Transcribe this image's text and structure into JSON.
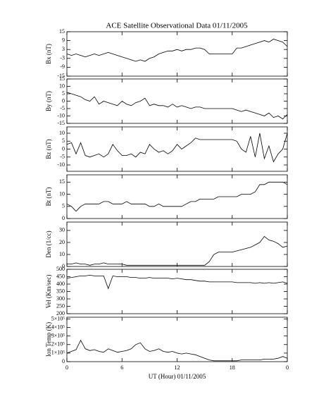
{
  "chart_data": [
    {
      "type": "line",
      "title": "ACE Satellite Observational Data   01/11/2005",
      "ylabel": "Bx (nT)",
      "x": [
        0,
        0.5,
        1,
        1.5,
        2,
        2.5,
        3,
        3.5,
        4,
        4.5,
        5,
        5.5,
        6,
        6.5,
        7,
        7.5,
        8,
        8.5,
        9,
        9.5,
        10,
        10.5,
        11,
        11.5,
        12,
        12.5,
        13,
        13.5,
        14,
        14.5,
        15,
        15.5,
        16,
        16.5,
        17,
        17.5,
        18,
        18.5,
        19,
        19.5,
        20,
        20.5,
        21,
        21.5,
        22,
        22.5,
        23,
        23.5,
        24
      ],
      "xlim": [
        0,
        24
      ],
      "xticks": [
        0,
        6,
        12,
        18,
        24
      ],
      "ylim": [
        -15,
        15
      ],
      "yticks": [
        -15,
        -9,
        -3,
        3,
        9,
        15
      ],
      "color": "#000000",
      "values": [
        0,
        -1,
        0,
        -1,
        -2,
        -1,
        0,
        -1,
        0,
        1,
        0,
        -1,
        -2,
        -3,
        -4,
        -5,
        -4,
        -5,
        -3,
        -2,
        0,
        1,
        2,
        2,
        3,
        2,
        3,
        3,
        4,
        4,
        3,
        0,
        0,
        0,
        0,
        0,
        0,
        4,
        4,
        5,
        6,
        7,
        8,
        9,
        8,
        10,
        9,
        8,
        5
      ]
    },
    {
      "type": "line",
      "ylabel": "By (nT)",
      "x": [
        0,
        0.5,
        1,
        1.5,
        2,
        2.5,
        3,
        3.5,
        4,
        4.5,
        5,
        5.5,
        6,
        6.5,
        7,
        7.5,
        8,
        8.5,
        9,
        9.5,
        10,
        10.5,
        11,
        11.5,
        12,
        12.5,
        13,
        13.5,
        14,
        14.5,
        15,
        15.5,
        16,
        16.5,
        17,
        17.5,
        18,
        18.5,
        19,
        19.5,
        20,
        20.5,
        21,
        21.5,
        22,
        22.5,
        23,
        23.5,
        24
      ],
      "xlim": [
        0,
        24
      ],
      "xticks": [
        0,
        6,
        12,
        18,
        24
      ],
      "ylim": [
        -15,
        15
      ],
      "yticks": [
        -15,
        -10,
        -5,
        0,
        5,
        10,
        15
      ],
      "color": "#000000",
      "values": [
        6,
        5,
        4,
        3,
        1,
        0,
        3,
        -2,
        0,
        -1,
        -2,
        -3,
        0,
        -2,
        -3,
        -1,
        0,
        2,
        -3,
        -2,
        -3,
        -3,
        -4,
        -2,
        -4,
        -3,
        -4,
        -5,
        -4,
        -4,
        -5,
        -5,
        -5,
        -5,
        -5,
        -5,
        -5,
        -6,
        -7,
        -6,
        -7,
        -8,
        -9,
        -10,
        -8,
        -11,
        -10,
        -12,
        -9
      ]
    },
    {
      "type": "line",
      "ylabel": "Bz (nT)",
      "x": [
        0,
        0.5,
        1,
        1.5,
        2,
        2.5,
        3,
        3.5,
        4,
        4.5,
        5,
        5.5,
        6,
        6.5,
        7,
        7.5,
        8,
        8.5,
        9,
        9.5,
        10,
        10.5,
        11,
        11.5,
        12,
        12.5,
        13,
        13.5,
        14,
        14.5,
        15,
        15.5,
        16,
        16.5,
        17,
        17.5,
        18,
        18.5,
        19,
        19.5,
        20,
        20.5,
        21,
        21.5,
        22,
        22.5,
        23,
        23.5,
        24
      ],
      "xlim": [
        0,
        24
      ],
      "xticks": [
        0,
        6,
        12,
        18,
        24
      ],
      "ylim": [
        -14,
        14
      ],
      "yticks": [
        -10,
        -5,
        0,
        5,
        10
      ],
      "color": "#000000",
      "values": [
        3,
        4,
        -3,
        4,
        -4,
        -5,
        -4,
        -3,
        -5,
        -3,
        3,
        -1,
        -4,
        -4,
        -3,
        -5,
        -2,
        -3,
        3,
        0,
        -2,
        -1,
        -3,
        -1,
        3,
        0,
        2,
        4,
        7,
        6,
        6,
        6,
        6,
        6,
        6,
        6,
        6,
        5,
        0,
        -2,
        8,
        -5,
        10,
        -6,
        2,
        -8,
        -3,
        0,
        10
      ]
    },
    {
      "type": "line",
      "ylabel": "Bt (nT)",
      "x": [
        0,
        0.5,
        1,
        1.5,
        2,
        2.5,
        3,
        3.5,
        4,
        4.5,
        5,
        5.5,
        6,
        6.5,
        7,
        7.5,
        8,
        8.5,
        9,
        9.5,
        10,
        10.5,
        11,
        11.5,
        12,
        12.5,
        13,
        13.5,
        14,
        14.5,
        15,
        15.5,
        16,
        16.5,
        17,
        17.5,
        18,
        18.5,
        19,
        19.5,
        20,
        20.5,
        21,
        21.5,
        22,
        22.5,
        23,
        23.5,
        24
      ],
      "xlim": [
        0,
        24
      ],
      "xticks": [
        0,
        6,
        12,
        18,
        24
      ],
      "ylim": [
        0,
        18
      ],
      "yticks": [
        0,
        5,
        10,
        15
      ],
      "color": "#000000",
      "values": [
        6,
        5,
        3,
        5,
        6,
        6,
        6,
        6,
        7,
        7,
        6,
        6,
        6,
        7,
        6,
        6,
        6,
        6,
        5,
        5,
        6,
        5,
        5,
        5,
        5,
        5,
        6,
        7,
        7,
        8,
        8,
        8,
        8,
        9,
        9,
        9,
        9,
        9,
        10,
        10,
        10,
        11,
        14,
        14,
        15,
        15,
        15,
        15,
        14
      ]
    },
    {
      "type": "line",
      "ylabel": "Den (1/cc)",
      "x": [
        0,
        0.5,
        1,
        1.5,
        2,
        2.5,
        3,
        3.5,
        4,
        4.5,
        5,
        5.5,
        6,
        6.5,
        7,
        7.5,
        8,
        8.5,
        9,
        9.5,
        10,
        10.5,
        11,
        11.5,
        12,
        12.5,
        13,
        13.5,
        14,
        14.5,
        15,
        15.5,
        16,
        16.5,
        17,
        17.5,
        18,
        18.5,
        19,
        19.5,
        20,
        20.5,
        21,
        21.5,
        22,
        22.5,
        23,
        23.5,
        24
      ],
      "xlim": [
        0,
        24
      ],
      "xticks": [
        0,
        6,
        12,
        18,
        24
      ],
      "ylim": [
        0,
        37
      ],
      "yticks": [
        0,
        10,
        20,
        30
      ],
      "color": "#000000",
      "values": [
        2,
        2,
        3,
        2,
        2,
        1,
        2,
        2,
        3,
        2,
        2,
        2,
        2,
        1,
        1,
        1,
        1,
        1,
        1,
        1,
        1,
        1,
        1,
        1,
        1,
        1,
        1,
        1,
        1,
        1,
        1,
        4,
        10,
        12,
        12,
        12,
        12,
        13,
        14,
        15,
        16,
        18,
        20,
        25,
        22,
        21,
        19,
        16,
        17
      ]
    },
    {
      "type": "line",
      "ylabel": "Vel (Km/sec)",
      "x": [
        0,
        0.5,
        1,
        1.5,
        2,
        2.5,
        3,
        3.5,
        4,
        4.5,
        5,
        5.5,
        6,
        6.5,
        7,
        7.5,
        8,
        8.5,
        9,
        9.5,
        10,
        10.5,
        11,
        11.5,
        12,
        12.5,
        13,
        13.5,
        14,
        14.5,
        15,
        15.5,
        16,
        16.5,
        17,
        17.5,
        18,
        18.5,
        19,
        19.5,
        20,
        20.5,
        21,
        21.5,
        22,
        22.5,
        23,
        23.5,
        24
      ],
      "xlim": [
        0,
        24
      ],
      "xticks": [
        0,
        6,
        12,
        18,
        24
      ],
      "ylim": [
        200,
        500
      ],
      "yticks": [
        200,
        250,
        300,
        350,
        400,
        450,
        500
      ],
      "color": "#000000",
      "values": [
        440,
        445,
        450,
        455,
        455,
        460,
        455,
        455,
        455,
        370,
        455,
        450,
        450,
        450,
        445,
        445,
        440,
        440,
        445,
        440,
        440,
        440,
        440,
        435,
        440,
        435,
        430,
        430,
        425,
        420,
        420,
        415,
        415,
        415,
        415,
        415,
        415,
        410,
        410,
        410,
        410,
        405,
        410,
        405,
        410,
        405,
        410,
        415,
        405
      ]
    },
    {
      "type": "line",
      "ylabel": "Ion Temp (K)",
      "xlabel": "UT (Hour)   01/11/2005",
      "x": [
        0,
        0.5,
        1,
        1.5,
        2,
        2.5,
        3,
        3.5,
        4,
        4.5,
        5,
        5.5,
        6,
        6.5,
        7,
        7.5,
        8,
        8.5,
        9,
        9.5,
        10,
        10.5,
        11,
        11.5,
        12,
        12.5,
        13,
        13.5,
        14,
        14.5,
        15,
        15.5,
        16,
        16.5,
        17,
        17.5,
        18,
        18.5,
        19,
        19.5,
        20,
        20.5,
        21,
        21.5,
        22,
        22.5,
        23,
        23.5,
        24
      ],
      "xlim": [
        0,
        24
      ],
      "xticks": [
        0,
        6,
        12,
        18,
        {
          "value": 24,
          "label": "0"
        }
      ],
      "ylim": [
        0,
        520000
      ],
      "yticks": [
        0,
        {
          "value": 100000,
          "label": "1×10⁵"
        },
        {
          "value": 200000,
          "label": "2×10⁵"
        },
        {
          "value": 300000,
          "label": "3×10⁵"
        },
        {
          "value": 400000,
          "label": "4×10⁵"
        },
        {
          "value": 500000,
          "label": "5×10⁵"
        }
      ],
      "color": "#000000",
      "values": [
        100000,
        120000,
        140000,
        250000,
        150000,
        130000,
        140000,
        120000,
        110000,
        150000,
        130000,
        110000,
        120000,
        130000,
        150000,
        200000,
        220000,
        150000,
        120000,
        130000,
        150000,
        120000,
        110000,
        120000,
        100000,
        90000,
        100000,
        90000,
        80000,
        60000,
        40000,
        20000,
        10000,
        10000,
        10000,
        10000,
        10000,
        10000,
        20000,
        20000,
        20000,
        20000,
        20000,
        30000,
        30000,
        30000,
        40000,
        60000,
        40000
      ]
    }
  ]
}
